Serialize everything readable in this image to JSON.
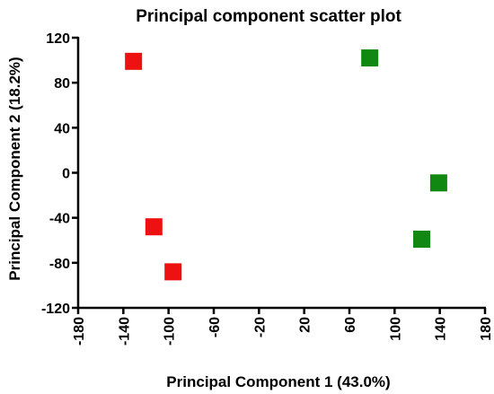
{
  "chart_data": {
    "type": "scatter",
    "title": "Principal component scatter plot",
    "xlabel": "Principal Component 1 (43.0%)",
    "ylabel": "Principal Component 2 (18.2%)",
    "xlim": [
      -180,
      180
    ],
    "ylim": [
      -120,
      120
    ],
    "xticks": [
      -180,
      -140,
      -100,
      -60,
      -20,
      20,
      60,
      100,
      140,
      180
    ],
    "yticks": [
      -120,
      -80,
      -40,
      0,
      40,
      80,
      120
    ],
    "grid": false,
    "legend": "none",
    "series": [
      {
        "color": "#ee1111",
        "marker": "square",
        "points": [
          {
            "x": -131,
            "y": 99
          },
          {
            "x": -113,
            "y": -48
          },
          {
            "x": -96,
            "y": -88
          }
        ]
      },
      {
        "color": "#118811",
        "marker": "square",
        "points": [
          {
            "x": 78,
            "y": 102
          },
          {
            "x": 139,
            "y": -9
          },
          {
            "x": 124,
            "y": -59
          }
        ]
      }
    ]
  }
}
